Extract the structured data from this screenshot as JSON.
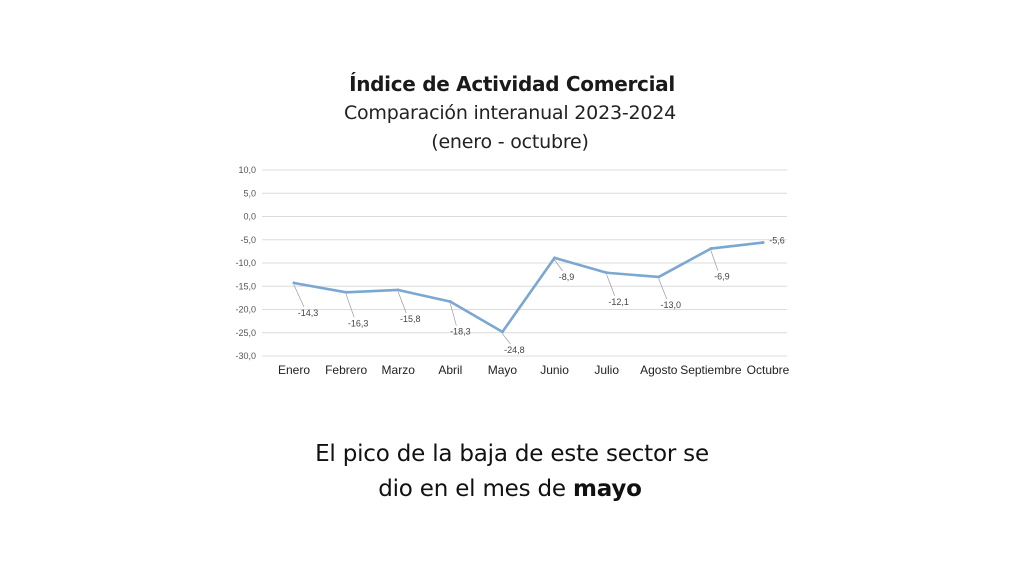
{
  "header": {
    "title": "Índice de Actividad Comercial",
    "subtitle_line1": "Comparación interanual 2023-2024",
    "subtitle_line2": "(enero - octubre)"
  },
  "caption": {
    "line1": "El pico de la baja de este sector se",
    "line2_prefix": "dio en el mes de ",
    "line2_bold": "mayo"
  },
  "chart_data": {
    "type": "line",
    "title": "Índice de Actividad Comercial",
    "subtitle": "Comparación interanual 2023-2024 (enero - octubre)",
    "categories": [
      "Enero",
      "Febrero",
      "Marzo",
      "Abril",
      "Mayo",
      "Junio",
      "Julio",
      "Agosto",
      "Septiembre",
      "Octubre"
    ],
    "values": [
      -14.3,
      -16.3,
      -15.8,
      -18.3,
      -24.8,
      -8.9,
      -12.1,
      -13.0,
      -6.9,
      -5.6
    ],
    "data_labels": [
      "-14,3",
      "-16,3",
      "-15,8",
      "-18,3",
      "-24,8",
      "-8,9",
      "-12,1",
      "-13,0",
      "-6,9",
      "-5,6"
    ],
    "y_ticks": [
      10,
      5,
      0,
      -5,
      -10,
      -15,
      -20,
      -25,
      -30
    ],
    "y_tick_labels": [
      "10,0",
      "5,0",
      "0,0",
      "-5,0",
      "-10,0",
      "-15,0",
      "-20,0",
      "-25,0",
      "-30,0"
    ],
    "ylim": [
      -30,
      10
    ],
    "grid": true,
    "line_color": "#7ba7d1",
    "grid_color": "#dcdcdc",
    "xlabel": "",
    "ylabel": ""
  }
}
